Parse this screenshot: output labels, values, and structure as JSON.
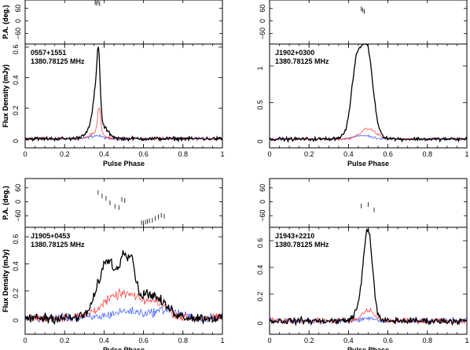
{
  "chart_data": [
    {
      "type": "line",
      "source": "0557+1551",
      "frequency": "1380.78125 MHz",
      "xlabel": "Pulse Phase",
      "ylabel": "Flux Density (mJy)",
      "pa_label": "P.A. (deg.)",
      "xlim": [
        0,
        1
      ],
      "ylim": [
        -0.06,
        0.62
      ],
      "xticks": [
        0,
        0.2,
        0.4,
        0.6,
        0.8,
        1
      ],
      "xtick_labels": [
        "0",
        "0.2",
        "0.4",
        "0.6",
        "0.8",
        "1"
      ],
      "yticks": [
        0,
        0.2,
        0.4,
        0.6
      ],
      "ytick_labels": [
        "0",
        "0.2",
        "0.4",
        "0.6"
      ],
      "pa_ylim": [
        -110,
        100
      ],
      "pa_yticks": [
        -60,
        0,
        60
      ],
      "pa_ytick_labels": [
        "−60",
        "0",
        "60"
      ],
      "noise": [
        0.015,
        0.012,
        0.012
      ],
      "series": [
        {
          "color": "#000000",
          "peaks": [
            [
              0.355,
              0.012,
              0.18
            ],
            [
              0.372,
              0.008,
              0.42
            ],
            [
              0.365,
              0.04,
              0.12
            ]
          ]
        },
        {
          "color": "#ff3030",
          "peaks": [
            [
              0.375,
              0.008,
              0.17
            ],
            [
              0.36,
              0.03,
              0.04
            ]
          ]
        },
        {
          "color": "#3355ff",
          "peaks": [
            [
              0.36,
              0.03,
              0.02
            ]
          ]
        }
      ],
      "pa_points": [
        [
          0.355,
          88
        ],
        [
          0.362,
          85
        ],
        [
          0.37,
          90
        ],
        [
          0.378,
          82
        ]
      ]
    },
    {
      "type": "line",
      "source": "J1902+0300",
      "frequency": "1380.78125 MHz",
      "xlabel": "Pulse Phase",
      "ylabel": "Flux Density (mJy)",
      "pa_label": "P.A. (deg.)",
      "xlim": [
        0,
        1
      ],
      "ylim": [
        -0.12,
        1.3
      ],
      "xticks": [
        0,
        0.2,
        0.4,
        0.6,
        0.8,
        1
      ],
      "xtick_labels": [
        "0",
        "0.2",
        "0.4",
        "0.6",
        "0.8",
        "1"
      ],
      "yticks": [
        0,
        0.5,
        1
      ],
      "ytick_labels": [
        "0",
        "0.5",
        "1"
      ],
      "pa_ylim": [
        -110,
        100
      ],
      "pa_yticks": [
        -60,
        0,
        60
      ],
      "pa_ytick_labels": [
        "−60",
        "0",
        "60"
      ],
      "noise": [
        0.03,
        0.02,
        0.02
      ],
      "series": [
        {
          "color": "#000000",
          "peaks": [
            [
              0.44,
              0.025,
              0.85
            ],
            [
              0.495,
              0.028,
              1.08
            ],
            [
              0.47,
              0.06,
              0.15
            ]
          ]
        },
        {
          "color": "#ff3030",
          "peaks": [
            [
              0.5,
              0.04,
              0.14
            ]
          ]
        },
        {
          "color": "#3355ff",
          "peaks": [
            [
              0.47,
              0.04,
              0.05
            ]
          ]
        }
      ],
      "pa_points": [
        [
          0.465,
          58
        ],
        [
          0.472,
          52
        ],
        [
          0.48,
          45
        ]
      ]
    },
    {
      "type": "line",
      "source": "J1905+0453",
      "frequency": "1380.78125 MHz",
      "xlabel": "Pulse Phase",
      "ylabel": "Flux Density (mJy)",
      "pa_label": "P.A. (deg.)",
      "xlim": [
        0,
        1
      ],
      "ylim": [
        -0.12,
        0.67
      ],
      "xticks": [
        0,
        0.2,
        0.4,
        0.6,
        0.8,
        1
      ],
      "xtick_labels": [
        "0",
        "0.2",
        "0.4",
        "0.6",
        "0.8",
        "1"
      ],
      "yticks": [
        0,
        0.2,
        0.4,
        0.6
      ],
      "ytick_labels": [
        "0",
        "0.2",
        "0.4",
        "0.6"
      ],
      "pa_ylim": [
        -110,
        100
      ],
      "pa_yticks": [
        -60,
        0,
        60
      ],
      "pa_ytick_labels": [
        "−60",
        "0",
        "60"
      ],
      "noise": [
        0.045,
        0.04,
        0.04
      ],
      "series": [
        {
          "color": "#000000",
          "peaks": [
            [
              0.42,
              0.05,
              0.42
            ],
            [
              0.5,
              0.018,
              0.3
            ],
            [
              0.54,
              0.018,
              0.3
            ],
            [
              0.62,
              0.08,
              0.18
            ]
          ]
        },
        {
          "color": "#ff3030",
          "peaks": [
            [
              0.5,
              0.1,
              0.18
            ],
            [
              0.68,
              0.05,
              0.08
            ]
          ]
        },
        {
          "color": "#3355ff",
          "peaks": [
            [
              0.52,
              0.08,
              0.05
            ],
            [
              0.72,
              0.06,
              0.06
            ]
          ]
        }
      ],
      "pa_points": [
        [
          0.37,
          40
        ],
        [
          0.39,
          25
        ],
        [
          0.41,
          15
        ],
        [
          0.43,
          -5
        ],
        [
          0.455,
          -20
        ],
        [
          0.475,
          -25
        ],
        [
          0.49,
          10
        ],
        [
          0.505,
          5
        ]
      ],
      "pa_points_low": [
        [
          0.59,
          -90
        ],
        [
          0.6,
          -92
        ],
        [
          0.61,
          -88
        ],
        [
          0.62,
          -85
        ],
        [
          0.63,
          -82
        ],
        [
          0.645,
          -80
        ],
        [
          0.66,
          -72
        ],
        [
          0.675,
          -65
        ],
        [
          0.69,
          -58
        ],
        [
          0.705,
          -62
        ]
      ]
    },
    {
      "type": "line",
      "source": "J1943+2210",
      "frequency": "1380.78125 MHz",
      "xlabel": "Pulse Phase",
      "ylabel": "Flux Density (mJy)",
      "pa_label": "P.A. (deg.)",
      "xlim": [
        0,
        1
      ],
      "ylim": [
        -0.1,
        0.7
      ],
      "xticks": [
        0,
        0.2,
        0.4,
        0.6,
        0.8,
        1
      ],
      "xtick_labels": [
        "0",
        "0.2",
        "0.4",
        "0.6",
        "0.8",
        "1"
      ],
      "yticks": [
        0,
        0.2,
        0.4,
        0.6
      ],
      "ytick_labels": [
        "0",
        "0.2",
        "0.4",
        "0.6"
      ],
      "pa_ylim": [
        -110,
        100
      ],
      "pa_yticks": [
        -60,
        0,
        60
      ],
      "pa_ytick_labels": [
        "−60",
        "0",
        "60"
      ],
      "noise": [
        0.03,
        0.025,
        0.025
      ],
      "series": [
        {
          "color": "#000000",
          "peaks": [
            [
              0.5,
              0.022,
              0.62
            ],
            [
              0.47,
              0.03,
              0.12
            ]
          ]
        },
        {
          "color": "#ff3030",
          "peaks": [
            [
              0.5,
              0.03,
              0.08
            ]
          ]
        },
        {
          "color": "#3355ff",
          "peaks": [
            [
              0.5,
              0.03,
              0.02
            ]
          ]
        }
      ],
      "pa_points": [
        [
          0.465,
          -18
        ],
        [
          0.5,
          -12
        ],
        [
          0.53,
          -35
        ]
      ]
    }
  ]
}
